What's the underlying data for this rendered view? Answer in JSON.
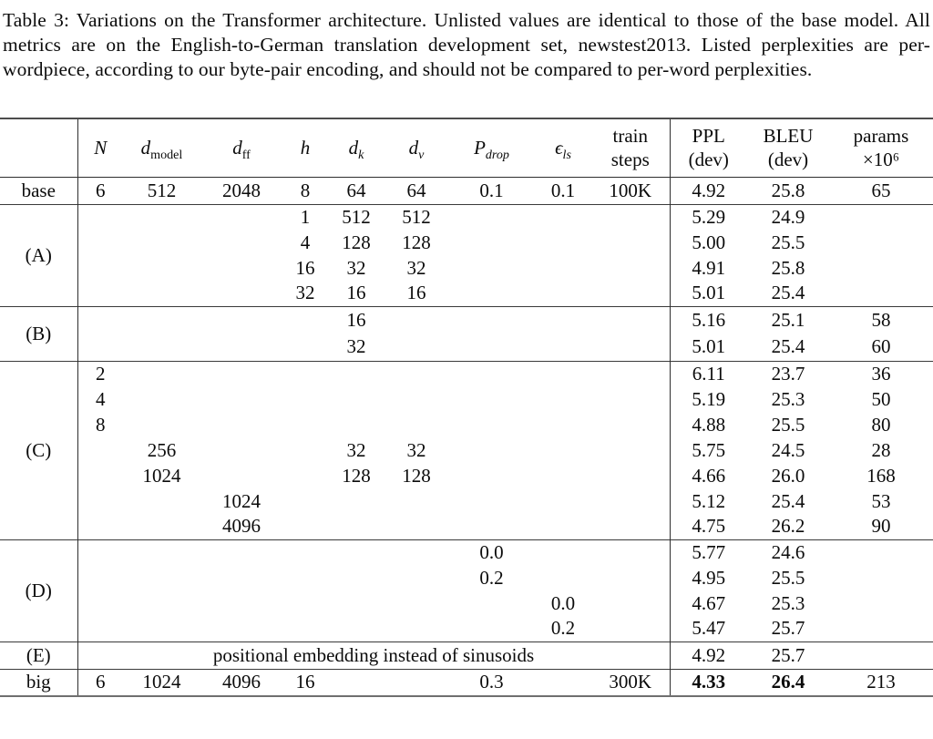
{
  "caption": "Table 3: Variations on the Transformer architecture. Unlisted values are identical to those of the base model. All metrics are on the English-to-German translation development set, newstest2013. Listed perplexities are per-wordpiece, according to our byte-pair encoding, and should not be compared to per-word perplexities.",
  "table": {
    "header": [
      {
        "text": ""
      },
      {
        "math": "N"
      },
      {
        "math": "d",
        "sub": "model",
        "sub_italic": false
      },
      {
        "math": "d",
        "sub": "ff",
        "sub_italic": false
      },
      {
        "math": "h"
      },
      {
        "math": "d",
        "sub": "k",
        "sub_italic": true
      },
      {
        "math": "d",
        "sub": "v",
        "sub_italic": true
      },
      {
        "math": "P",
        "sub": "drop",
        "sub_italic": true
      },
      {
        "math": "ϵ",
        "sub": "ls",
        "sub_italic": true
      },
      {
        "lines": [
          "train",
          "steps"
        ]
      },
      {
        "lines": [
          "PPL",
          "(dev)"
        ]
      },
      {
        "lines": [
          "BLEU",
          "(dev)"
        ]
      },
      {
        "lines": [
          "params",
          "×10⁶"
        ]
      }
    ],
    "sections": [
      {
        "label": "base",
        "rows": [
          [
            "6",
            "512",
            "2048",
            "8",
            "64",
            "64",
            "0.1",
            "0.1",
            "100K",
            "4.92",
            "25.8",
            "65"
          ]
        ]
      },
      {
        "label": "(A)",
        "rows": [
          [
            "",
            "",
            "",
            "1",
            "512",
            "512",
            "",
            "",
            "",
            "5.29",
            "24.9",
            ""
          ],
          [
            "",
            "",
            "",
            "4",
            "128",
            "128",
            "",
            "",
            "",
            "5.00",
            "25.5",
            ""
          ],
          [
            "",
            "",
            "",
            "16",
            "32",
            "32",
            "",
            "",
            "",
            "4.91",
            "25.8",
            ""
          ],
          [
            "",
            "",
            "",
            "32",
            "16",
            "16",
            "",
            "",
            "",
            "5.01",
            "25.4",
            ""
          ]
        ]
      },
      {
        "label": "(B)",
        "rows": [
          [
            "",
            "",
            "",
            "",
            "16",
            "",
            "",
            "",
            "",
            "5.16",
            "25.1",
            "58"
          ],
          [
            "",
            "",
            "",
            "",
            "32",
            "",
            "",
            "",
            "",
            "5.01",
            "25.4",
            "60"
          ]
        ]
      },
      {
        "label": "(C)",
        "rows": [
          [
            "2",
            "",
            "",
            "",
            "",
            "",
            "",
            "",
            "",
            "6.11",
            "23.7",
            "36"
          ],
          [
            "4",
            "",
            "",
            "",
            "",
            "",
            "",
            "",
            "",
            "5.19",
            "25.3",
            "50"
          ],
          [
            "8",
            "",
            "",
            "",
            "",
            "",
            "",
            "",
            "",
            "4.88",
            "25.5",
            "80"
          ],
          [
            "",
            "256",
            "",
            "",
            "32",
            "32",
            "",
            "",
            "",
            "5.75",
            "24.5",
            "28"
          ],
          [
            "",
            "1024",
            "",
            "",
            "128",
            "128",
            "",
            "",
            "",
            "4.66",
            "26.0",
            "168"
          ],
          [
            "",
            "",
            "1024",
            "",
            "",
            "",
            "",
            "",
            "",
            "5.12",
            "25.4",
            "53"
          ],
          [
            "",
            "",
            "4096",
            "",
            "",
            "",
            "",
            "",
            "",
            "4.75",
            "26.2",
            "90"
          ]
        ]
      },
      {
        "label": "(D)",
        "rows": [
          [
            "",
            "",
            "",
            "",
            "",
            "",
            "0.0",
            "",
            "",
            "5.77",
            "24.6",
            ""
          ],
          [
            "",
            "",
            "",
            "",
            "",
            "",
            "0.2",
            "",
            "",
            "4.95",
            "25.5",
            ""
          ],
          [
            "",
            "",
            "",
            "",
            "",
            "",
            "",
            "0.0",
            "",
            "4.67",
            "25.3",
            ""
          ],
          [
            "",
            "",
            "",
            "",
            "",
            "",
            "",
            "0.2",
            "",
            "5.47",
            "25.7",
            ""
          ]
        ]
      },
      {
        "label": "(E)",
        "rows": [
          {
            "span_text": "positional embedding instead of sinusoids",
            "span_cols": 9,
            "cells": [
              "4.92",
              "25.7",
              ""
            ]
          }
        ]
      },
      {
        "label": "big",
        "bold_cols": [
          9,
          10
        ],
        "rows": [
          [
            "6",
            "1024",
            "4096",
            "16",
            "",
            "",
            "0.3",
            "",
            "300K",
            "4.33",
            "26.4",
            "213"
          ]
        ]
      }
    ]
  }
}
